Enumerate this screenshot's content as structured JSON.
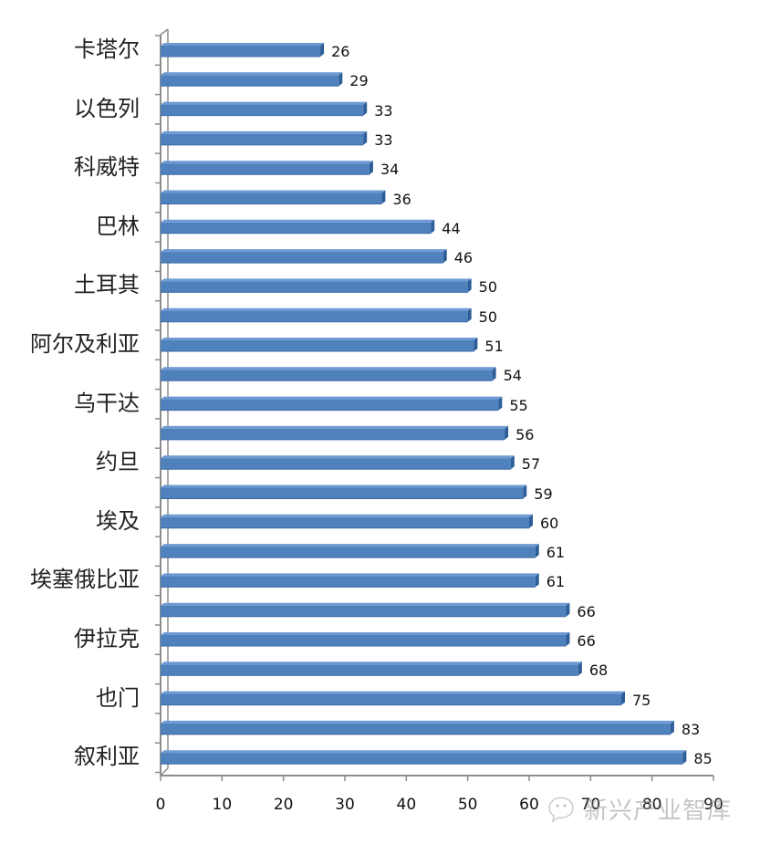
{
  "chart_data": {
    "type": "bar",
    "orientation": "horizontal",
    "title": "",
    "xlabel": "",
    "ylabel": "",
    "xlim": [
      0,
      90
    ],
    "x_ticks": [
      0,
      10,
      20,
      30,
      40,
      50,
      60,
      70,
      80,
      90
    ],
    "grid": false,
    "legend": null,
    "bar_color": "#4F81BD",
    "bar_shade_color": "#2E5E99",
    "axis_color": "#8C8C8C",
    "categories": [
      "卡塔尔",
      "",
      "以色列",
      "",
      "科威特",
      "",
      "巴林",
      "",
      "土耳其",
      "",
      "阿尔及利亚",
      "",
      "乌干达",
      "",
      "约旦",
      "",
      "埃及",
      "",
      "埃塞俄比亚",
      "",
      "伊拉克",
      "",
      "也门",
      "",
      "叙利亚"
    ],
    "values": [
      26,
      29,
      33,
      33,
      34,
      36,
      44,
      46,
      50,
      50,
      51,
      54,
      55,
      56,
      57,
      59,
      60,
      61,
      61,
      66,
      66,
      68,
      75,
      83,
      85
    ],
    "data_labels": [
      "26",
      "29",
      "33",
      "33",
      "34",
      "36",
      "44",
      "46",
      "50",
      "50",
      "51",
      "54",
      "55",
      "56",
      "57",
      "59",
      "60",
      "61",
      "61",
      "66",
      "66",
      "68",
      "75",
      "83",
      "85"
    ],
    "note": "Category labels shown only on every other bar (as rendered)."
  },
  "watermark": {
    "text": "新兴产业智库",
    "icon": "wechat-icon"
  }
}
